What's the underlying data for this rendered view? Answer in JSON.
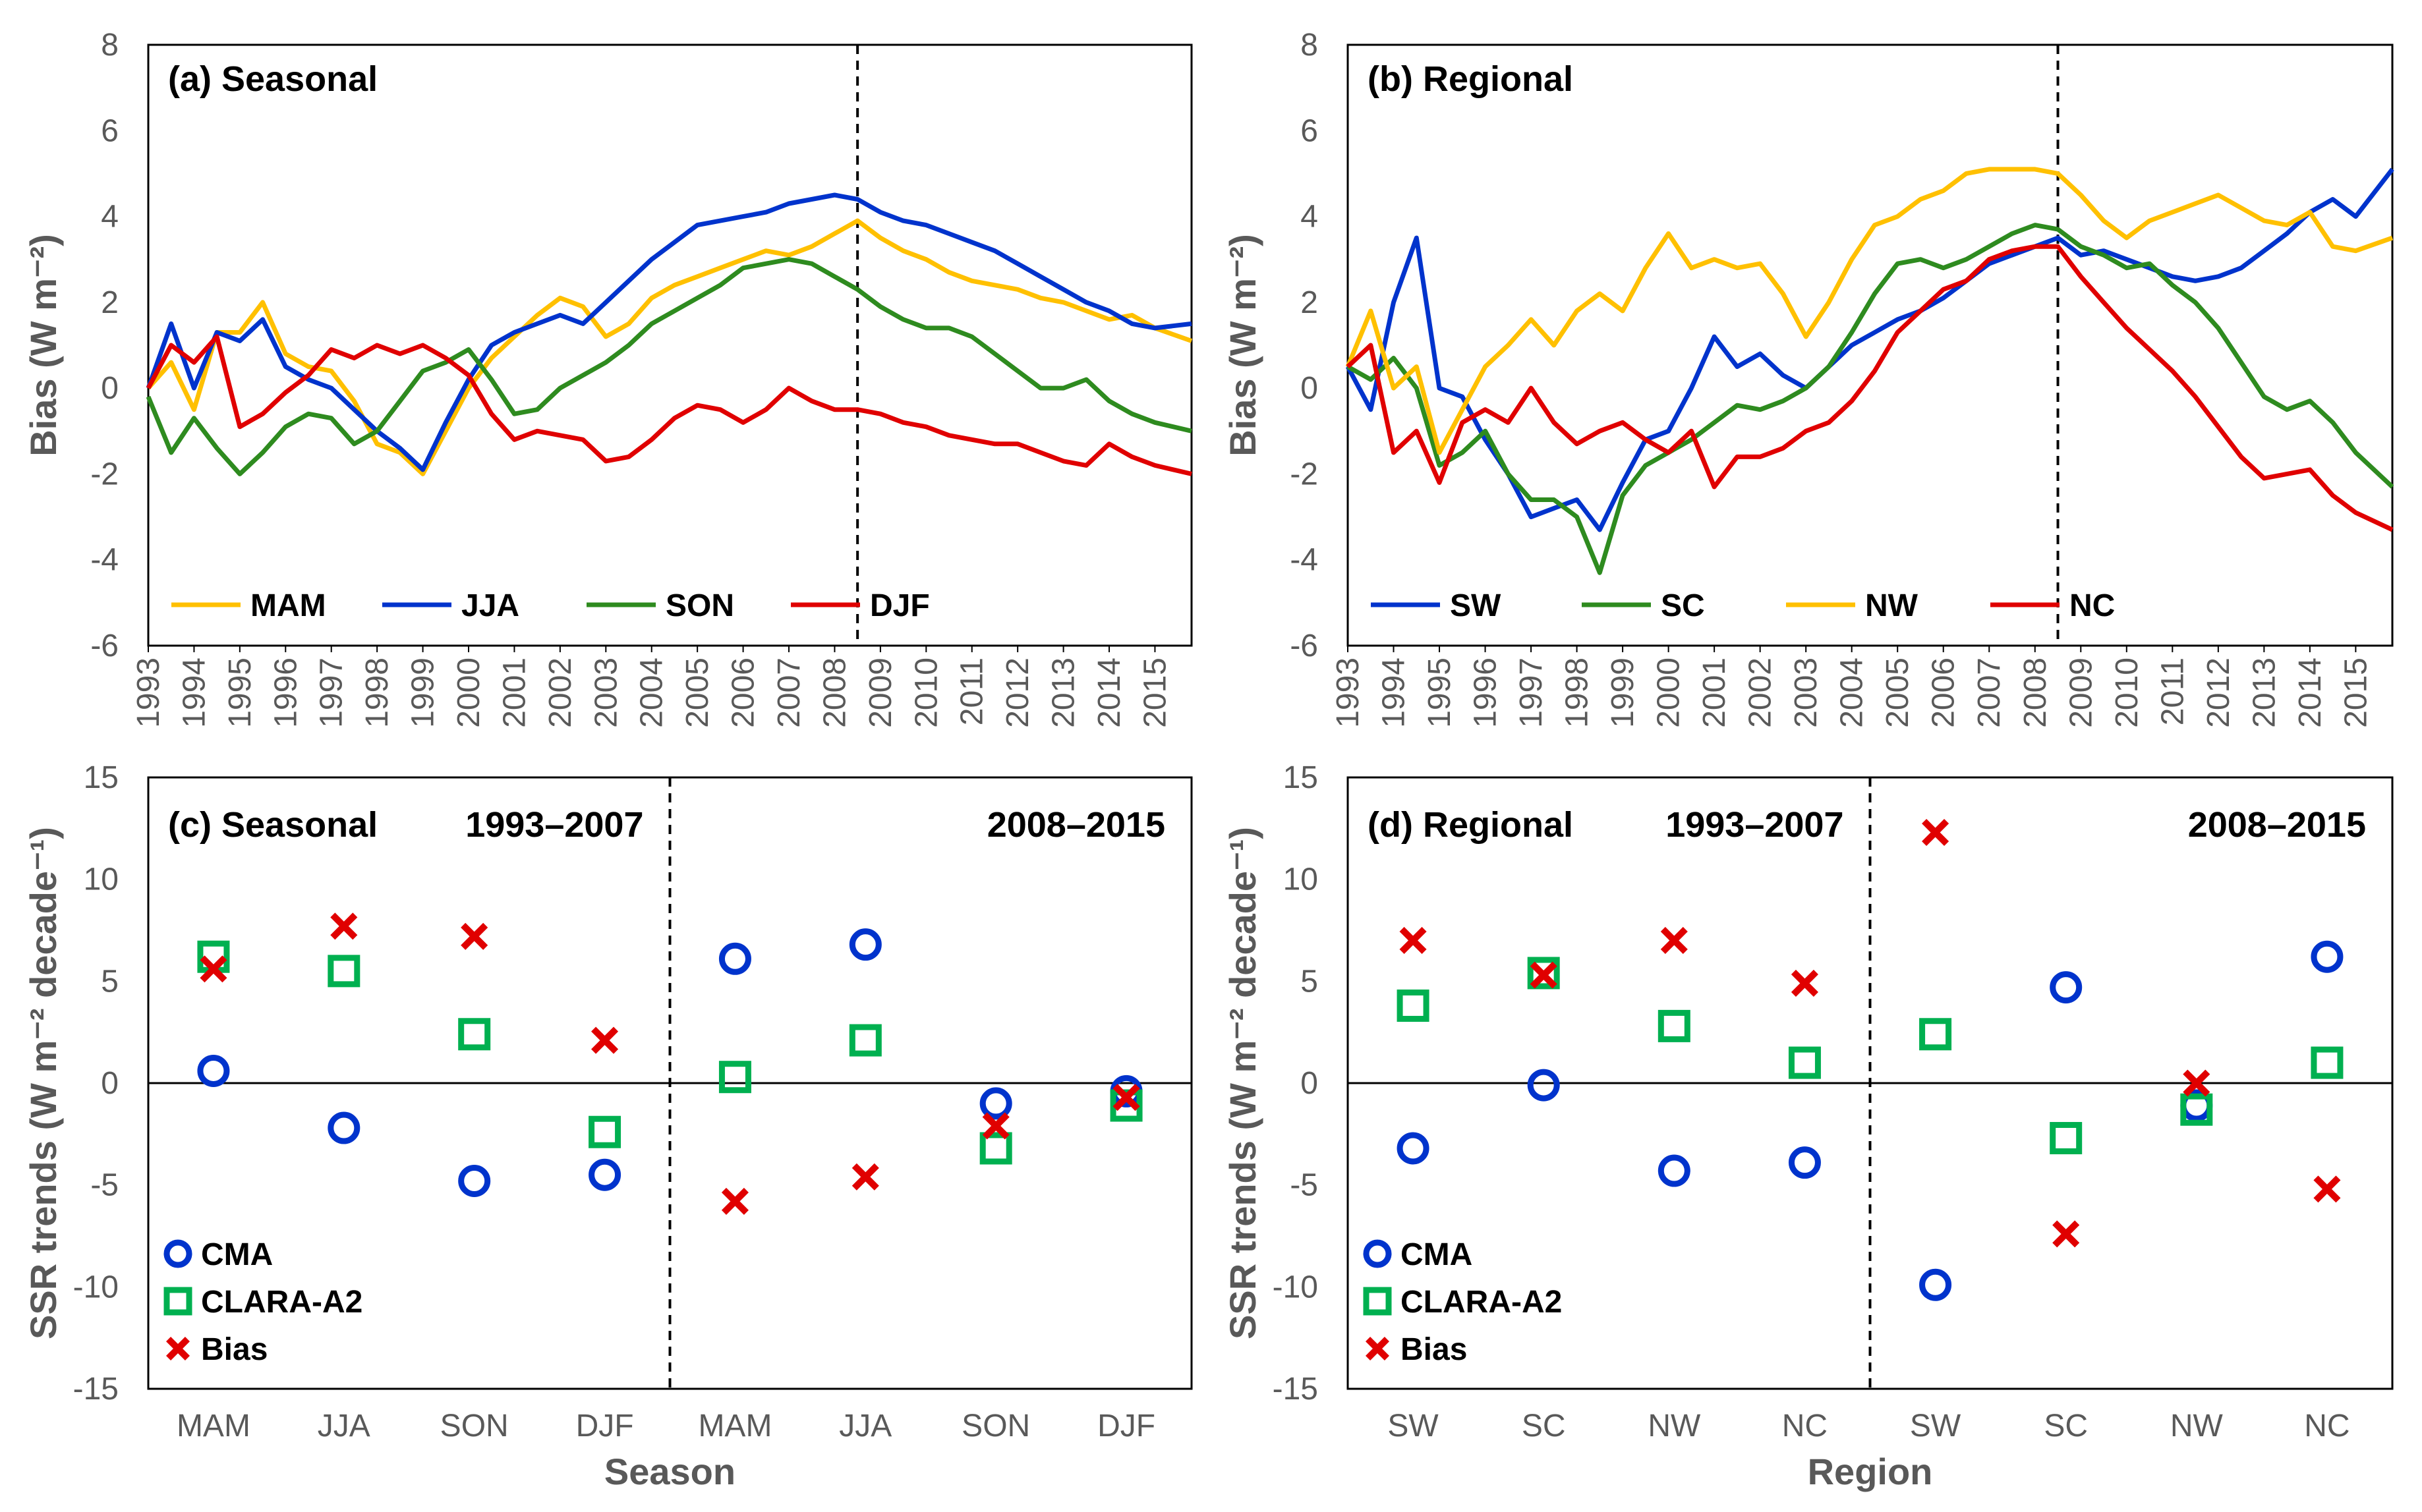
{
  "chart_data": [
    {
      "id": "a",
      "type": "line",
      "title": "(a) Seasonal",
      "xlabel": "",
      "ylabel": "Bias (W m⁻²)",
      "ylim": [
        -6,
        8
      ],
      "yticks": [
        -6,
        -4,
        -2,
        0,
        2,
        4,
        6,
        8
      ],
      "xlim": [
        1993,
        2015.8
      ],
      "xticks": [
        "1993",
        "1994",
        "1995",
        "1996",
        "1997",
        "1998",
        "1999",
        "2000",
        "2001",
        "2002",
        "2003",
        "2004",
        "2005",
        "2006",
        "2007",
        "2008",
        "2009",
        "2010",
        "2011",
        "2012",
        "2013",
        "2014",
        "2015"
      ],
      "vline": 2008.5,
      "legend": "bottom-left",
      "series": [
        {
          "name": "MAM",
          "color": "#FFC000",
          "x": [
            1993,
            1993.5,
            1994,
            1994.5,
            1995,
            1995.5,
            1996,
            1996.5,
            1997,
            1997.5,
            1998,
            1998.5,
            1999,
            1999.5,
            2000,
            2000.5,
            2001,
            2001.5,
            2002,
            2002.5,
            2003,
            2003.5,
            2004,
            2004.5,
            2005,
            2005.5,
            2006,
            2006.5,
            2007,
            2007.5,
            2008,
            2008.5,
            2009,
            2009.5,
            2010,
            2010.5,
            2011,
            2011.5,
            2012,
            2012.5,
            2013,
            2013.5,
            2014,
            2014.5,
            2015,
            2015.8
          ],
          "y": [
            0,
            0.6,
            -0.5,
            1.3,
            1.3,
            2.0,
            0.8,
            0.5,
            0.4,
            -0.3,
            -1.3,
            -1.5,
            -2.0,
            -1.0,
            0.0,
            0.7,
            1.2,
            1.7,
            2.1,
            1.9,
            1.2,
            1.5,
            2.1,
            2.4,
            2.6,
            2.8,
            3.0,
            3.2,
            3.1,
            3.3,
            3.6,
            3.9,
            3.5,
            3.2,
            3.0,
            2.7,
            2.5,
            2.4,
            2.3,
            2.1,
            2.0,
            1.8,
            1.6,
            1.7,
            1.4,
            1.1
          ]
        },
        {
          "name": "JJA",
          "color": "#0033CC",
          "x": [
            1993,
            1993.5,
            1994,
            1994.5,
            1995,
            1995.5,
            1996,
            1996.5,
            1997,
            1997.5,
            1998,
            1998.5,
            1999,
            1999.5,
            2000,
            2000.5,
            2001,
            2001.5,
            2002,
            2002.5,
            2003,
            2003.5,
            2004,
            2004.5,
            2005,
            2005.5,
            2006,
            2006.5,
            2007,
            2007.5,
            2008,
            2008.5,
            2009,
            2009.5,
            2010,
            2010.5,
            2011,
            2011.5,
            2012,
            2012.5,
            2013,
            2013.5,
            2014,
            2014.5,
            2015,
            2015.8
          ],
          "y": [
            0,
            1.5,
            0,
            1.3,
            1.1,
            1.6,
            0.5,
            0.2,
            0,
            -0.5,
            -1.0,
            -1.4,
            -1.9,
            -0.8,
            0.2,
            1.0,
            1.3,
            1.5,
            1.7,
            1.5,
            2.0,
            2.5,
            3.0,
            3.4,
            3.8,
            3.9,
            4.0,
            4.1,
            4.3,
            4.4,
            4.5,
            4.4,
            4.1,
            3.9,
            3.8,
            3.6,
            3.4,
            3.2,
            2.9,
            2.6,
            2.3,
            2.0,
            1.8,
            1.5,
            1.4,
            1.5
          ]
        },
        {
          "name": "SON",
          "color": "#2E8B1F",
          "x": [
            1993,
            1993.5,
            1994,
            1994.5,
            1995,
            1995.5,
            1996,
            1996.5,
            1997,
            1997.5,
            1998,
            1998.5,
            1999,
            1999.5,
            2000,
            2000.5,
            2001,
            2001.5,
            2002,
            2002.5,
            2003,
            2003.5,
            2004,
            2004.5,
            2005,
            2005.5,
            2006,
            2006.5,
            2007,
            2007.5,
            2008,
            2008.5,
            2009,
            2009.5,
            2010,
            2010.5,
            2011,
            2011.5,
            2012,
            2012.5,
            2013,
            2013.5,
            2014,
            2014.5,
            2015,
            2015.8
          ],
          "y": [
            -0.2,
            -1.5,
            -0.7,
            -1.4,
            -2.0,
            -1.5,
            -0.9,
            -0.6,
            -0.7,
            -1.3,
            -1.0,
            -0.3,
            0.4,
            0.6,
            0.9,
            0.2,
            -0.6,
            -0.5,
            0,
            0.3,
            0.6,
            1.0,
            1.5,
            1.8,
            2.1,
            2.4,
            2.8,
            2.9,
            3.0,
            2.9,
            2.6,
            2.3,
            1.9,
            1.6,
            1.4,
            1.4,
            1.2,
            0.8,
            0.4,
            0,
            0,
            0.2,
            -0.3,
            -0.6,
            -0.8,
            -1.0
          ]
        },
        {
          "name": "DJF",
          "color": "#E00000",
          "x": [
            1993,
            1993.5,
            1994,
            1994.5,
            1995,
            1995.5,
            1996,
            1996.5,
            1997,
            1997.5,
            1998,
            1998.5,
            1999,
            1999.5,
            2000,
            2000.5,
            2001,
            2001.5,
            2002,
            2002.5,
            2003,
            2003.5,
            2004,
            2004.5,
            2005,
            2005.5,
            2006,
            2006.5,
            2007,
            2007.5,
            2008,
            2008.5,
            2009,
            2009.5,
            2010,
            2010.5,
            2011,
            2011.5,
            2012,
            2012.5,
            2013,
            2013.5,
            2014,
            2014.5,
            2015,
            2015.8
          ],
          "y": [
            0,
            1.0,
            0.6,
            1.2,
            -0.9,
            -0.6,
            -0.1,
            0.3,
            0.9,
            0.7,
            1.0,
            0.8,
            1.0,
            0.7,
            0.3,
            -0.6,
            -1.2,
            -1.0,
            -1.1,
            -1.2,
            -1.7,
            -1.6,
            -1.2,
            -0.7,
            -0.4,
            -0.5,
            -0.8,
            -0.5,
            0,
            -0.3,
            -0.5,
            -0.5,
            -0.6,
            -0.8,
            -0.9,
            -1.1,
            -1.2,
            -1.3,
            -1.3,
            -1.5,
            -1.7,
            -1.8,
            -1.3,
            -1.6,
            -1.8,
            -2.0
          ]
        }
      ]
    },
    {
      "id": "b",
      "type": "line",
      "title": "(b) Regional",
      "xlabel": "",
      "ylabel": "Bias (W m⁻²)",
      "ylim": [
        -6,
        8
      ],
      "yticks": [
        -6,
        -4,
        -2,
        0,
        2,
        4,
        6,
        8
      ],
      "xlim": [
        1993,
        2015.8
      ],
      "xticks": [
        "1993",
        "1994",
        "1995",
        "1996",
        "1997",
        "1998",
        "1999",
        "2000",
        "2001",
        "2002",
        "2003",
        "2004",
        "2005",
        "2006",
        "2007",
        "2008",
        "2009",
        "2010",
        "2011",
        "2012",
        "2013",
        "2014",
        "2015"
      ],
      "vline": 2008.5,
      "legend": "bottom-left",
      "series": [
        {
          "name": "SW",
          "color": "#0033CC",
          "x": [
            1993,
            1993.5,
            1994,
            1994.5,
            1995,
            1995.5,
            1996,
            1996.5,
            1997,
            1997.5,
            1998,
            1998.5,
            1999,
            1999.5,
            2000,
            2000.5,
            2001,
            2001.5,
            2002,
            2002.5,
            2003,
            2003.5,
            2004,
            2004.5,
            2005,
            2005.5,
            2006,
            2006.5,
            2007,
            2007.5,
            2008,
            2008.5,
            2009,
            2009.5,
            2010,
            2010.5,
            2011,
            2011.5,
            2012,
            2012.5,
            2013,
            2013.5,
            2014,
            2014.5,
            2015,
            2015.8
          ],
          "y": [
            0.5,
            -0.5,
            2.0,
            3.5,
            0,
            -0.2,
            -1.2,
            -2.0,
            -3.0,
            -2.8,
            -2.6,
            -3.3,
            -2.2,
            -1.2,
            -1.0,
            0,
            1.2,
            0.5,
            0.8,
            0.3,
            0,
            0.5,
            1.0,
            1.3,
            1.6,
            1.8,
            2.1,
            2.5,
            2.9,
            3.1,
            3.3,
            3.5,
            3.1,
            3.2,
            3.0,
            2.8,
            2.6,
            2.5,
            2.6,
            2.8,
            3.2,
            3.6,
            4.1,
            4.4,
            4.0,
            5.1
          ]
        },
        {
          "name": "SC",
          "color": "#2E8B1F",
          "x": [
            1993,
            1993.5,
            1994,
            1994.5,
            1995,
            1995.5,
            1996,
            1996.5,
            1997,
            1997.5,
            1998,
            1998.5,
            1999,
            1999.5,
            2000,
            2000.5,
            2001,
            2001.5,
            2002,
            2002.5,
            2003,
            2003.5,
            2004,
            2004.5,
            2005,
            2005.5,
            2006,
            2006.5,
            2007,
            2007.5,
            2008,
            2008.5,
            2009,
            2009.5,
            2010,
            2010.5,
            2011,
            2011.5,
            2012,
            2012.5,
            2013,
            2013.5,
            2014,
            2014.5,
            2015,
            2015.8
          ],
          "y": [
            0.5,
            0.2,
            0.7,
            0,
            -1.8,
            -1.5,
            -1.0,
            -2.0,
            -2.6,
            -2.6,
            -3.0,
            -4.3,
            -2.5,
            -1.8,
            -1.5,
            -1.2,
            -0.8,
            -0.4,
            -0.5,
            -0.3,
            0,
            0.5,
            1.3,
            2.2,
            2.9,
            3.0,
            2.8,
            3.0,
            3.3,
            3.6,
            3.8,
            3.7,
            3.3,
            3.1,
            2.8,
            2.9,
            2.4,
            2.0,
            1.4,
            0.6,
            -0.2,
            -0.5,
            -0.3,
            -0.8,
            -1.5,
            -2.3
          ]
        },
        {
          "name": "NW",
          "color": "#FFC000",
          "x": [
            1993,
            1993.5,
            1994,
            1994.5,
            1995,
            1995.5,
            1996,
            1996.5,
            1997,
            1997.5,
            1998,
            1998.5,
            1999,
            1999.5,
            2000,
            2000.5,
            2001,
            2001.5,
            2002,
            2002.5,
            2003,
            2003.5,
            2004,
            2004.5,
            2005,
            2005.5,
            2006,
            2006.5,
            2007,
            2007.5,
            2008,
            2008.5,
            2009,
            2009.5,
            2010,
            2010.5,
            2011,
            2011.5,
            2012,
            2012.5,
            2013,
            2013.5,
            2014,
            2014.5,
            2015,
            2015.8
          ],
          "y": [
            0.5,
            1.8,
            0,
            0.5,
            -1.5,
            -0.5,
            0.5,
            1.0,
            1.6,
            1.0,
            1.8,
            2.2,
            1.8,
            2.8,
            3.6,
            2.8,
            3.0,
            2.8,
            2.9,
            2.2,
            1.2,
            2.0,
            3.0,
            3.8,
            4.0,
            4.4,
            4.6,
            5.0,
            5.1,
            5.1,
            5.1,
            5.0,
            4.5,
            3.9,
            3.5,
            3.9,
            4.1,
            4.3,
            4.5,
            4.2,
            3.9,
            3.8,
            4.1,
            3.3,
            3.2,
            3.5
          ]
        },
        {
          "name": "NC",
          "color": "#E00000",
          "x": [
            1993,
            1993.5,
            1994,
            1994.5,
            1995,
            1995.5,
            1996,
            1996.5,
            1997,
            1997.5,
            1998,
            1998.5,
            1999,
            1999.5,
            2000,
            2000.5,
            2001,
            2001.5,
            2002,
            2002.5,
            2003,
            2003.5,
            2004,
            2004.5,
            2005,
            2005.5,
            2006,
            2006.5,
            2007,
            2007.5,
            2008,
            2008.5,
            2009,
            2009.5,
            2010,
            2010.5,
            2011,
            2011.5,
            2012,
            2012.5,
            2013,
            2013.5,
            2014,
            2014.5,
            2015,
            2015.8
          ],
          "y": [
            0.5,
            1.0,
            -1.5,
            -1.0,
            -2.2,
            -0.8,
            -0.5,
            -0.8,
            0,
            -0.8,
            -1.3,
            -1.0,
            -0.8,
            -1.2,
            -1.5,
            -1.0,
            -2.3,
            -1.6,
            -1.6,
            -1.4,
            -1.0,
            -0.8,
            -0.3,
            0.4,
            1.3,
            1.8,
            2.3,
            2.5,
            3.0,
            3.2,
            3.3,
            3.3,
            2.6,
            2.0,
            1.4,
            0.9,
            0.4,
            -0.2,
            -0.9,
            -1.6,
            -2.1,
            -2.0,
            -1.9,
            -2.5,
            -2.9,
            -3.3
          ]
        }
      ]
    },
    {
      "id": "c",
      "type": "scatter",
      "title": "(c) Seasonal",
      "period_labels": [
        "1993–2007",
        "2008–2015"
      ],
      "xlabel": "Season",
      "ylabel": "SSR trends (W m⁻² decade⁻¹)",
      "ylim": [
        -15,
        15
      ],
      "yticks": [
        -15,
        -10,
        -5,
        0,
        5,
        10,
        15
      ],
      "categories": [
        "MAM",
        "JJA",
        "SON",
        "DJF",
        "MAM",
        "JJA",
        "SON",
        "DJF"
      ],
      "vline_after_index": 3,
      "legend": "bottom-left",
      "series": [
        {
          "name": "CMA",
          "marker": "circle",
          "color": "#0033CC",
          "values": [
            0.6,
            -2.2,
            -4.8,
            -4.5,
            6.1,
            6.8,
            -1.0,
            -0.4
          ]
        },
        {
          "name": "CLARA-A2",
          "marker": "square",
          "color": "#00B050",
          "values": [
            6.2,
            5.5,
            2.4,
            -2.4,
            0.3,
            2.1,
            -3.2,
            -1.1
          ]
        },
        {
          "name": "Bias",
          "marker": "x",
          "color": "#E00000",
          "values": [
            5.6,
            7.7,
            7.2,
            2.1,
            -5.8,
            -4.6,
            -2.1,
            -0.7
          ]
        }
      ]
    },
    {
      "id": "d",
      "type": "scatter",
      "title": "(d) Regional",
      "period_labels": [
        "1993–2007",
        "2008–2015"
      ],
      "xlabel": "Region",
      "ylabel": "SSR trends (W m⁻² decade⁻¹)",
      "ylim": [
        -15,
        15
      ],
      "yticks": [
        -15,
        -10,
        -5,
        0,
        5,
        10,
        15
      ],
      "categories": [
        "SW",
        "SC",
        "NW",
        "NC",
        "SW",
        "SC",
        "NW",
        "NC"
      ],
      "vline_after_index": 3,
      "legend": "bottom-left",
      "series": [
        {
          "name": "CMA",
          "marker": "circle",
          "color": "#0033CC",
          "values": [
            -3.2,
            -0.1,
            -4.3,
            -3.9,
            -9.9,
            4.7,
            -1.1,
            6.2
          ]
        },
        {
          "name": "CLARA-A2",
          "marker": "square",
          "color": "#00B050",
          "values": [
            3.8,
            5.4,
            2.8,
            1.0,
            2.4,
            -2.7,
            -1.3,
            1.0
          ]
        },
        {
          "name": "Bias",
          "marker": "x",
          "color": "#E00000",
          "values": [
            7.0,
            5.3,
            7.0,
            4.9,
            12.3,
            -7.4,
            0.0,
            -5.2
          ]
        }
      ]
    }
  ]
}
